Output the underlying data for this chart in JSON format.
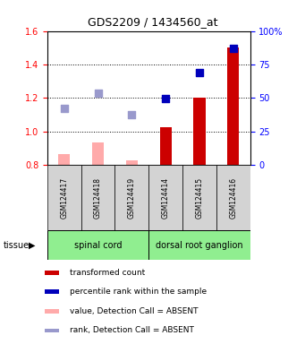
{
  "title": "GDS2209 / 1434560_at",
  "samples": [
    "GSM124417",
    "GSM124418",
    "GSM124419",
    "GSM124414",
    "GSM124415",
    "GSM124416"
  ],
  "tissue_groups": [
    {
      "label": "spinal cord",
      "samples": [
        0,
        1,
        2
      ]
    },
    {
      "label": "dorsal root ganglion",
      "samples": [
        3,
        4,
        5
      ]
    }
  ],
  "bar_values": [
    0.865,
    0.935,
    0.83,
    1.025,
    1.2,
    1.5
  ],
  "bar_absent": [
    true,
    true,
    true,
    false,
    false,
    false
  ],
  "bar_color_present": "#cc0000",
  "bar_color_absent": "#ffaaaa",
  "dot_values": [
    1.14,
    1.23,
    1.1,
    1.195,
    1.35,
    1.495
  ],
  "dot_absent": [
    true,
    true,
    true,
    false,
    false,
    false
  ],
  "dot_color_present": "#0000bb",
  "dot_color_absent": "#9999cc",
  "ylim_left": [
    0.8,
    1.6
  ],
  "ylim_right": [
    0,
    100
  ],
  "yticks_left": [
    0.8,
    1.0,
    1.2,
    1.4,
    1.6
  ],
  "yticks_right": [
    0,
    25,
    50,
    75,
    100
  ],
  "ytick_labels_right": [
    "0",
    "25",
    "50",
    "75",
    "100%"
  ],
  "background_color": "#ffffff",
  "plot_bg_color": "#ffffff",
  "legend_items": [
    {
      "color": "#cc0000",
      "label": "transformed count"
    },
    {
      "color": "#0000bb",
      "label": "percentile rank within the sample"
    },
    {
      "color": "#ffaaaa",
      "label": "value, Detection Call = ABSENT"
    },
    {
      "color": "#9999cc",
      "label": "rank, Detection Call = ABSENT"
    }
  ],
  "bar_width": 0.35,
  "dot_size": 40,
  "tissue_color": "#90ee90",
  "sample_box_color": "#d3d3d3"
}
